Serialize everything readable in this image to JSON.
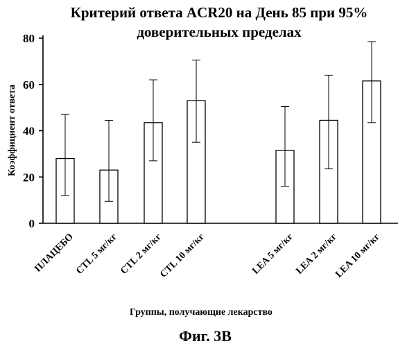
{
  "chart_data": {
    "type": "bar",
    "title_lines": [
      "Критерий ответа ACR20 на День 85 при 95%",
      "доверительных пределах"
    ],
    "ylabel": "Коэффициент ответа",
    "xlabel": "Группы, получающие лекарство",
    "ylim": [
      0,
      80
    ],
    "yticks": [
      0,
      20,
      40,
      60,
      80
    ],
    "categories": [
      "ПЛАЦЕБО",
      "CTL 5 мг/кг",
      "CTL 2 мг/кг",
      "CTL 10 мг/кг",
      "LEA 5 мг/кг",
      "LEA 2 мг/кг",
      "LEA 10 мг/кг"
    ],
    "values": [
      28,
      23,
      43.5,
      53,
      31.5,
      44.5,
      61.5
    ],
    "error_low": [
      12,
      9.5,
      27,
      35,
      16,
      23.5,
      43.5
    ],
    "error_high": [
      47,
      44.5,
      62,
      70.5,
      50.5,
      64,
      78.5
    ],
    "grid": false,
    "legend": false
  },
  "caption": "Фиг. 3B"
}
